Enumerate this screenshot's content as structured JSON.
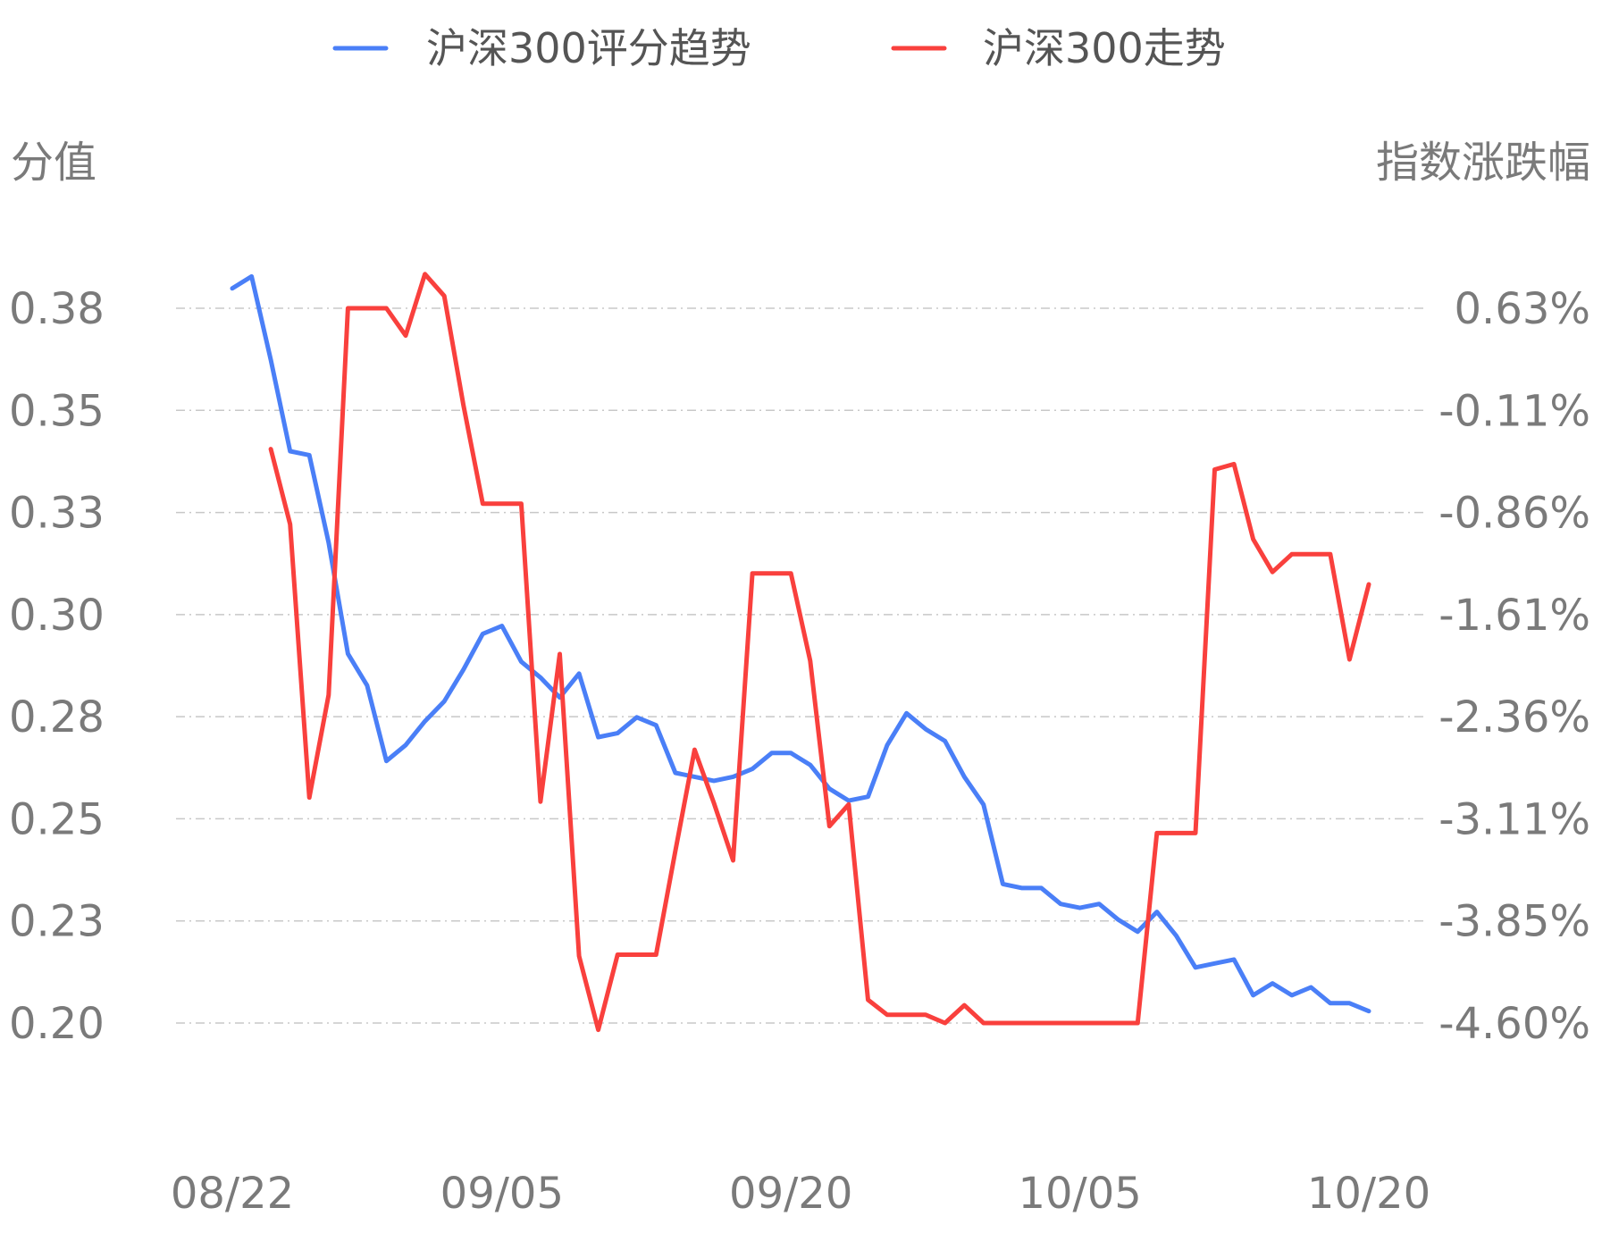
{
  "chart_data": {
    "type": "line",
    "legend_position": "top-center",
    "grid": true,
    "y_left": {
      "label": "分值",
      "ticks": [
        "0.38",
        "0.35",
        "0.33",
        "0.30",
        "0.28",
        "0.25",
        "0.23",
        "0.20"
      ],
      "range": [
        0.2,
        0.38
      ]
    },
    "y_right": {
      "label": "指数涨跌幅",
      "ticks": [
        "0.63%",
        "-0.11%",
        "-0.86%",
        "-1.61%",
        "-2.36%",
        "-3.11%",
        "-3.85%",
        "-4.60%"
      ],
      "range": [
        -4.6,
        0.63
      ]
    },
    "x_ticks": [
      {
        "label": "08/22",
        "index": 0
      },
      {
        "label": "09/05",
        "index": 14
      },
      {
        "label": "09/20",
        "index": 29
      },
      {
        "label": "10/05",
        "index": 44
      },
      {
        "label": "10/20",
        "index": 59
      }
    ],
    "series": [
      {
        "name": "沪深300评分趋势",
        "color": "#4a7ff7",
        "axis": "left",
        "values": [
          0.385,
          0.388,
          0.367,
          0.344,
          0.343,
          0.321,
          0.293,
          0.285,
          0.266,
          0.27,
          0.276,
          0.281,
          0.289,
          0.298,
          0.3,
          0.291,
          0.287,
          0.282,
          0.288,
          0.272,
          0.273,
          0.277,
          0.275,
          0.263,
          0.262,
          0.261,
          0.262,
          0.264,
          0.268,
          0.268,
          0.265,
          0.259,
          0.256,
          0.257,
          0.27,
          0.278,
          0.274,
          0.271,
          0.262,
          0.255,
          0.235,
          0.234,
          0.234,
          0.23,
          0.229,
          0.23,
          0.226,
          0.223,
          0.228,
          0.222,
          0.214,
          0.215,
          0.216,
          0.207,
          0.21,
          0.207,
          0.209,
          0.205,
          0.205,
          0.203
        ]
      },
      {
        "name": "沪深300走势",
        "color": "#f9403d",
        "axis": "right",
        "values": [
          null,
          null,
          -0.4,
          -0.95,
          -2.95,
          -2.2,
          0.63,
          0.63,
          0.63,
          0.43,
          0.88,
          0.72,
          -0.08,
          -0.8,
          -0.8,
          -0.8,
          -2.98,
          -1.9,
          -4.11,
          -4.65,
          -4.1,
          -4.1,
          -4.1,
          -3.34,
          -2.6,
          -2.99,
          -3.41,
          -1.31,
          -1.31,
          -1.31,
          -1.95,
          -3.16,
          -3.0,
          -4.43,
          -4.54,
          -4.54,
          -4.54,
          -4.6,
          -4.47,
          -4.6,
          -4.6,
          -4.6,
          -4.6,
          -4.6,
          -4.6,
          -4.6,
          -4.6,
          -4.6,
          -3.21,
          -3.21,
          -3.21,
          -0.55,
          -0.51,
          -1.06,
          -1.3,
          -1.17,
          -1.17,
          -1.17,
          -1.94,
          -1.39
        ]
      }
    ]
  }
}
